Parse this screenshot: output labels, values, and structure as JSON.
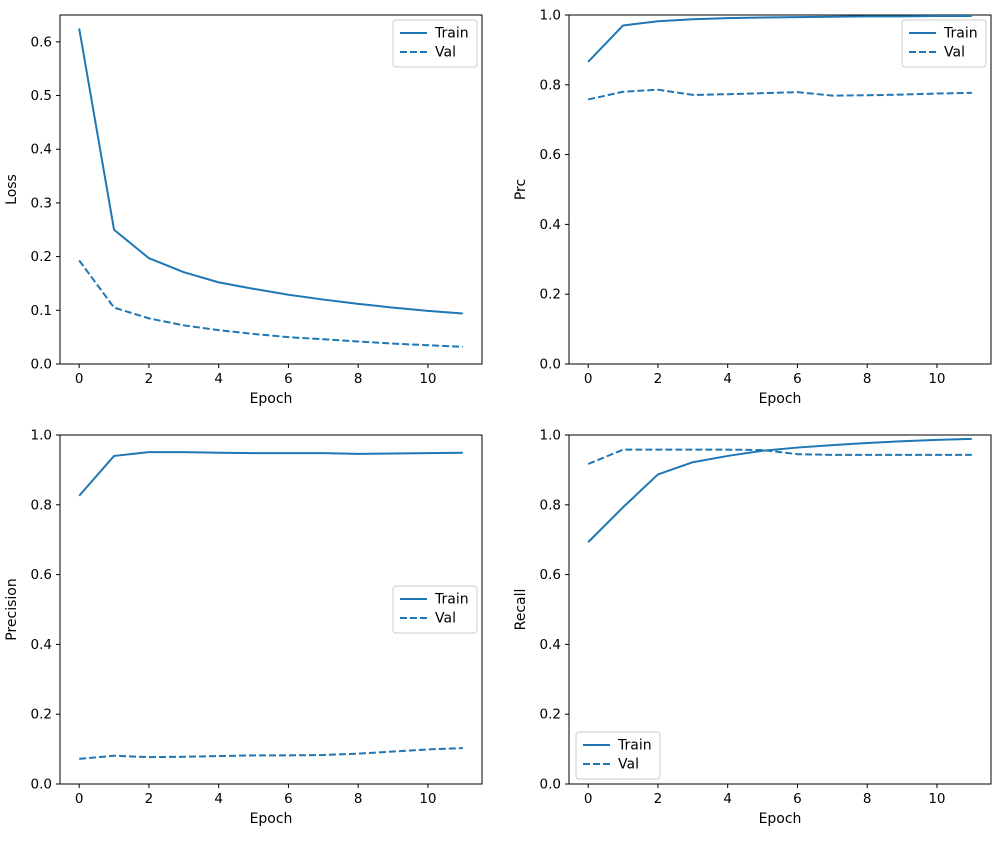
{
  "figure": {
    "background": "#ffffff",
    "line_color": "#1f77b4",
    "axis_color": "#000000",
    "legend_border_color": "#cccccc"
  },
  "chart_data": [
    {
      "type": "line",
      "title": "",
      "xlabel": "Epoch",
      "ylabel": "Loss",
      "x": [
        0,
        1,
        2,
        3,
        4,
        5,
        6,
        7,
        8,
        9,
        10,
        11
      ],
      "series": [
        {
          "name": "Train",
          "line_style": "solid",
          "values": [
            0.625,
            0.25,
            0.197,
            0.171,
            0.152,
            0.14,
            0.129,
            0.12,
            0.112,
            0.105,
            0.099,
            0.094
          ]
        },
        {
          "name": "Val",
          "line_style": "dashed",
          "values": [
            0.193,
            0.105,
            0.085,
            0.072,
            0.063,
            0.056,
            0.05,
            0.046,
            0.042,
            0.038,
            0.035,
            0.032
          ]
        }
      ],
      "xlim": [
        -0.55,
        11.55
      ],
      "ylim": [
        0,
        0.65
      ],
      "xticks": [
        0,
        2,
        4,
        6,
        8,
        10
      ],
      "yticks": [
        0.0,
        0.1,
        0.2,
        0.3,
        0.4,
        0.5,
        0.6
      ],
      "grid": false,
      "legend_position": "upper-right"
    },
    {
      "type": "line",
      "title": "",
      "xlabel": "Epoch",
      "ylabel": "Prc",
      "x": [
        0,
        1,
        2,
        3,
        4,
        5,
        6,
        7,
        8,
        9,
        10,
        11
      ],
      "series": [
        {
          "name": "Train",
          "line_style": "solid",
          "values": [
            0.866,
            0.97,
            0.982,
            0.988,
            0.991,
            0.993,
            0.994,
            0.995,
            0.996,
            0.996,
            0.997,
            0.997
          ]
        },
        {
          "name": "Val",
          "line_style": "dashed",
          "values": [
            0.758,
            0.78,
            0.786,
            0.771,
            0.773,
            0.776,
            0.779,
            0.769,
            0.77,
            0.772,
            0.775,
            0.777
          ]
        }
      ],
      "xlim": [
        -0.55,
        11.55
      ],
      "ylim": [
        0,
        1.0
      ],
      "xticks": [
        0,
        2,
        4,
        6,
        8,
        10
      ],
      "yticks": [
        0.0,
        0.2,
        0.4,
        0.6,
        0.8,
        1.0
      ],
      "grid": false,
      "legend_position": "upper-right"
    },
    {
      "type": "line",
      "title": "",
      "xlabel": "Epoch",
      "ylabel": "Precision",
      "x": [
        0,
        1,
        2,
        3,
        4,
        5,
        6,
        7,
        8,
        9,
        10,
        11
      ],
      "series": [
        {
          "name": "Train",
          "line_style": "solid",
          "values": [
            0.826,
            0.94,
            0.951,
            0.951,
            0.949,
            0.948,
            0.948,
            0.948,
            0.946,
            0.947,
            0.948,
            0.949
          ]
        },
        {
          "name": "Val",
          "line_style": "dashed",
          "values": [
            0.072,
            0.081,
            0.077,
            0.078,
            0.08,
            0.082,
            0.082,
            0.083,
            0.087,
            0.093,
            0.099,
            0.103
          ]
        }
      ],
      "xlim": [
        -0.55,
        11.55
      ],
      "ylim": [
        0,
        1.0
      ],
      "xticks": [
        0,
        2,
        4,
        6,
        8,
        10
      ],
      "yticks": [
        0.0,
        0.2,
        0.4,
        0.6,
        0.8,
        1.0
      ],
      "grid": false,
      "legend_position": "center-right"
    },
    {
      "type": "line",
      "title": "",
      "xlabel": "Epoch",
      "ylabel": "Recall",
      "x": [
        0,
        1,
        2,
        3,
        4,
        5,
        6,
        7,
        8,
        9,
        10,
        11
      ],
      "series": [
        {
          "name": "Train",
          "line_style": "solid",
          "values": [
            0.693,
            0.793,
            0.887,
            0.922,
            0.94,
            0.955,
            0.964,
            0.971,
            0.977,
            0.982,
            0.986,
            0.989
          ]
        },
        {
          "name": "Val",
          "line_style": "dashed",
          "values": [
            0.917,
            0.958,
            0.958,
            0.958,
            0.958,
            0.957,
            0.945,
            0.943,
            0.943,
            0.943,
            0.943,
            0.943
          ]
        }
      ],
      "xlim": [
        -0.55,
        11.55
      ],
      "ylim": [
        0,
        1.0
      ],
      "xticks": [
        0,
        2,
        4,
        6,
        8,
        10
      ],
      "yticks": [
        0.0,
        0.2,
        0.4,
        0.6,
        0.8,
        1.0
      ],
      "grid": false,
      "legend_position": "lower-left"
    }
  ]
}
